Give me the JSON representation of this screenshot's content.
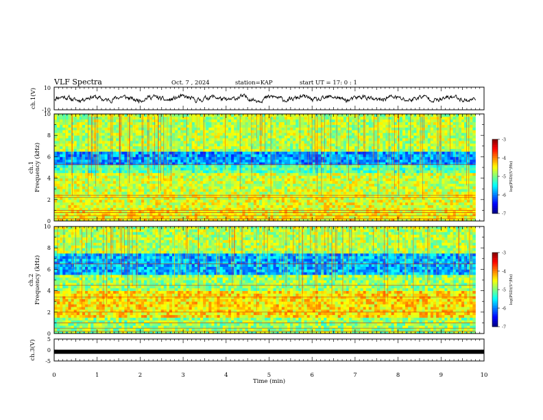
{
  "header": {
    "title": "VLF Spectra",
    "date": "Oct. 7 , 2024",
    "station": "station=KAP",
    "start": "start UT =  17: 0  : 1"
  },
  "chart_data": [
    {
      "id": "ch1-waveform",
      "type": "line",
      "ylabel": "ch.1(V)",
      "ylim": [
        -10,
        10
      ],
      "y_ticks": [
        "10",
        "-10"
      ],
      "xlim": [
        0,
        10
      ],
      "trace_range": [
        0,
        9.8
      ],
      "typical_amplitude": [
        -3,
        3
      ],
      "color": "#000000"
    },
    {
      "id": "ch1-spectrogram",
      "type": "heatmap",
      "ylabel": "ch.1\nFrequency (kHz)",
      "ylim": [
        0,
        10
      ],
      "y_ticks": [
        "0",
        "2",
        "4",
        "6",
        "8",
        "10"
      ],
      "xlim": [
        0,
        10
      ],
      "data_end_time": 9.8,
      "colorbar": {
        "label": "log(PSD)(V²/Hz)",
        "range": [
          -7,
          -3
        ],
        "ticks": [
          "-3",
          "-4",
          "-5",
          "-6",
          "-7"
        ]
      },
      "features": [
        {
          "band_khz": [
            0.0,
            1.0
          ],
          "level": -4.5
        },
        {
          "band_khz": [
            1.0,
            2.5
          ],
          "level": -4.6
        },
        {
          "band_khz": [
            2.5,
            4.5
          ],
          "level": -4.7
        },
        {
          "band_khz": [
            4.5,
            5.3
          ],
          "level": -5.2
        },
        {
          "band_khz": [
            5.3,
            6.5
          ],
          "level": -5.9
        },
        {
          "band_khz": [
            6.5,
            10.0
          ],
          "level": -4.8
        }
      ],
      "harmonic_lines_khz": [
        0.2,
        0.5,
        0.8,
        1.0,
        2.2,
        2.4,
        5.3
      ]
    },
    {
      "id": "ch2-spectrogram",
      "type": "heatmap",
      "ylabel": "ch.2\nFrequency (kHz)",
      "ylim": [
        0,
        10
      ],
      "y_ticks": [
        "0",
        "2",
        "4",
        "6",
        "8",
        "10"
      ],
      "xlim": [
        0,
        10
      ],
      "data_end_time": 9.8,
      "colorbar": {
        "label": "log(PSD)(V²/Hz)",
        "range": [
          -7,
          -3
        ],
        "ticks": [
          "-3",
          "-4",
          "-5",
          "-6",
          "-7"
        ]
      },
      "features": [
        {
          "band_khz": [
            0.0,
            1.5
          ],
          "level": -4.9
        },
        {
          "band_khz": [
            1.5,
            4.0
          ],
          "level": -4.4
        },
        {
          "band_khz": [
            4.0,
            5.5
          ],
          "level": -4.9
        },
        {
          "band_khz": [
            5.5,
            7.5
          ],
          "level": -5.8
        },
        {
          "band_khz": [
            7.5,
            10.0
          ],
          "level": -4.8
        }
      ],
      "harmonic_lines_khz": [
        0.2,
        0.5,
        1.0,
        2.0,
        3.4,
        4.5,
        6.5
      ]
    },
    {
      "id": "ch3-waveform",
      "type": "line",
      "ylabel": "ch.3(V)",
      "ylim": [
        -5,
        5
      ],
      "y_ticks": [
        "5",
        "0",
        "-5"
      ],
      "xlim": [
        0,
        10
      ],
      "level": -0.8,
      "color": "#000000"
    }
  ],
  "x_axis": {
    "label": "Time  (min)",
    "ticks": [
      "0",
      "1",
      "2",
      "3",
      "4",
      "5",
      "6",
      "7",
      "8",
      "9",
      "10"
    ]
  }
}
